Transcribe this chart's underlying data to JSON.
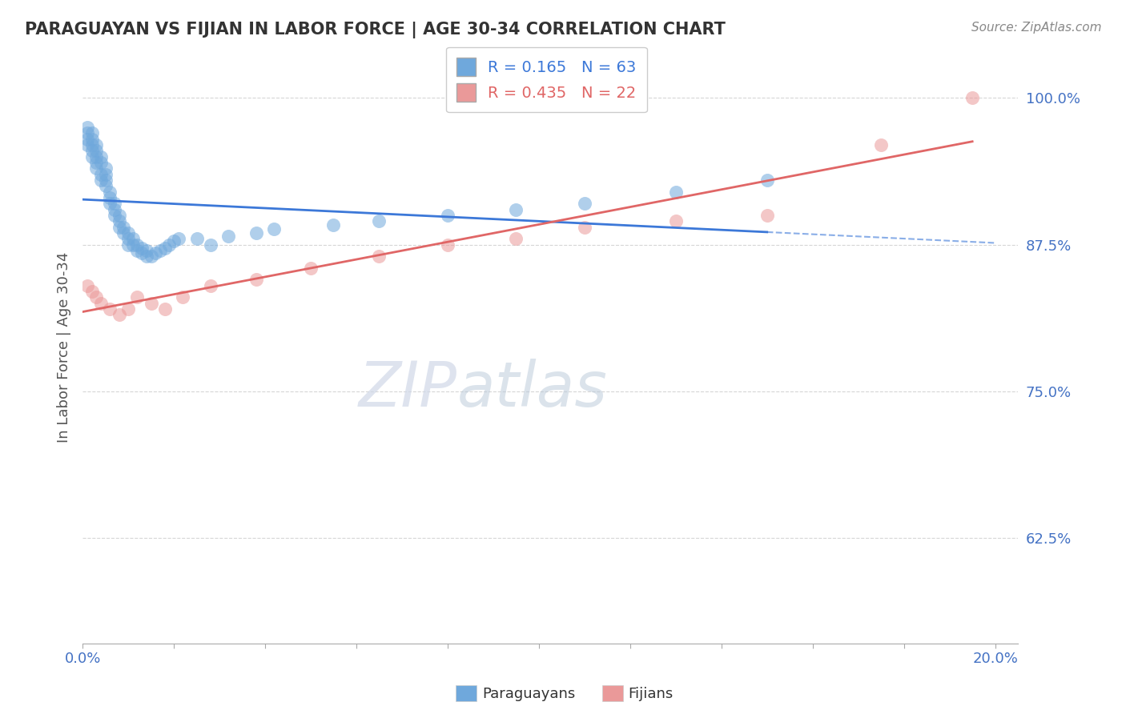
{
  "title": "PARAGUAYAN VS FIJIAN IN LABOR FORCE | AGE 30-34 CORRELATION CHART",
  "ylabel": "In Labor Force | Age 30-34",
  "source_text": "Source: ZipAtlas.com",
  "xlim": [
    0.0,
    0.205
  ],
  "ylim": [
    0.535,
    1.04
  ],
  "xtick_positions": [
    0.0,
    0.02,
    0.04,
    0.06,
    0.08,
    0.1,
    0.12,
    0.14,
    0.16,
    0.18,
    0.2
  ],
  "xtick_labels": [
    "0.0%",
    "",
    "",
    "",
    "",
    "",
    "",
    "",
    "",
    "",
    "20.0%"
  ],
  "ytick_positions": [
    0.625,
    0.75,
    0.875,
    1.0
  ],
  "ytick_labels": [
    "62.5%",
    "75.0%",
    "87.5%",
    "100.0%"
  ],
  "blue_R": 0.165,
  "blue_N": 63,
  "pink_R": 0.435,
  "pink_N": 22,
  "blue_color": "#6fa8dc",
  "pink_color": "#ea9999",
  "blue_line_color": "#3c78d8",
  "pink_line_color": "#e06666",
  "blue_x": [
    0.001,
    0.001,
    0.001,
    0.001,
    0.002,
    0.002,
    0.002,
    0.002,
    0.002,
    0.003,
    0.003,
    0.003,
    0.003,
    0.003,
    0.004,
    0.004,
    0.004,
    0.004,
    0.005,
    0.005,
    0.005,
    0.005,
    0.006,
    0.006,
    0.006,
    0.007,
    0.007,
    0.007,
    0.008,
    0.008,
    0.008,
    0.009,
    0.009,
    0.01,
    0.01,
    0.01,
    0.011,
    0.011,
    0.012,
    0.012,
    0.013,
    0.013,
    0.014,
    0.014,
    0.015,
    0.016,
    0.017,
    0.018,
    0.019,
    0.02,
    0.021,
    0.025,
    0.028,
    0.032,
    0.038,
    0.042,
    0.055,
    0.065,
    0.08,
    0.095,
    0.11,
    0.13,
    0.15
  ],
  "blue_y": [
    0.975,
    0.97,
    0.965,
    0.96,
    0.97,
    0.965,
    0.96,
    0.955,
    0.95,
    0.96,
    0.955,
    0.95,
    0.945,
    0.94,
    0.95,
    0.945,
    0.935,
    0.93,
    0.94,
    0.935,
    0.93,
    0.925,
    0.92,
    0.915,
    0.91,
    0.91,
    0.905,
    0.9,
    0.9,
    0.895,
    0.89,
    0.89,
    0.885,
    0.885,
    0.88,
    0.875,
    0.88,
    0.875,
    0.875,
    0.87,
    0.872,
    0.868,
    0.87,
    0.865,
    0.865,
    0.868,
    0.87,
    0.872,
    0.875,
    0.878,
    0.88,
    0.88,
    0.875,
    0.882,
    0.885,
    0.888,
    0.892,
    0.895,
    0.9,
    0.905,
    0.91,
    0.92,
    0.93
  ],
  "pink_x": [
    0.001,
    0.002,
    0.003,
    0.004,
    0.006,
    0.008,
    0.01,
    0.012,
    0.015,
    0.018,
    0.022,
    0.028,
    0.038,
    0.05,
    0.065,
    0.08,
    0.095,
    0.11,
    0.13,
    0.15,
    0.175,
    0.195
  ],
  "pink_y": [
    0.84,
    0.835,
    0.83,
    0.825,
    0.82,
    0.815,
    0.82,
    0.83,
    0.825,
    0.82,
    0.83,
    0.84,
    0.845,
    0.855,
    0.865,
    0.875,
    0.88,
    0.89,
    0.895,
    0.9,
    0.96,
    1.0
  ]
}
